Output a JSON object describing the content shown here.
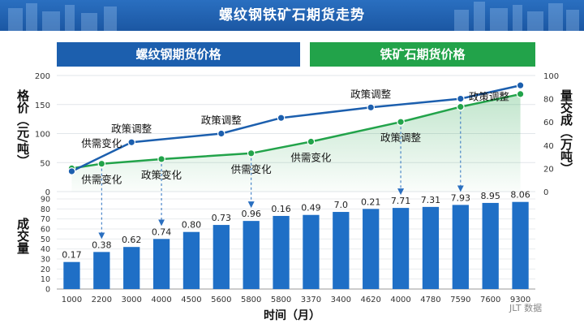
{
  "title": "螺纹钢铁矿石期货走势",
  "legend": {
    "rebar": "螺纹钢期货价格",
    "iron": "铁矿石期货价格"
  },
  "axis_labels": {
    "left_top": "格价（元/吨）",
    "right_top": "量交成（万吨）",
    "left_bottom": "成交量",
    "x": "时间（月）"
  },
  "watermark": "JLT 数据",
  "colors": {
    "rebar": "#1c5fae",
    "iron": "#22a34a",
    "bar": "#1f6fc6"
  },
  "chart_data": [
    {
      "type": "line",
      "x": [
        "1000",
        "2200",
        "3000",
        "4000",
        "4500",
        "5600",
        "5800",
        "5800",
        "3370",
        "3400",
        "4620",
        "4000",
        "4780",
        "7590",
        "7600",
        "9300"
      ],
      "series": [
        {
          "name": "螺纹钢期货价格",
          "axis": "left",
          "points": [
            [
              0,
              35
            ],
            [
              2,
              85
            ],
            [
              5,
              100
            ],
            [
              7,
              127
            ],
            [
              10,
              145
            ],
            [
              13,
              160
            ],
            [
              15,
              183
            ]
          ]
        },
        {
          "name": "铁矿石期货价格",
          "axis": "right",
          "points": [
            [
              0,
              20
            ],
            [
              1,
              24
            ],
            [
              3,
              28
            ],
            [
              6,
              33
            ],
            [
              8,
              43
            ],
            [
              11,
              60
            ],
            [
              13,
              73
            ],
            [
              15,
              84
            ]
          ]
        }
      ],
      "ylim_left": [
        0,
        200
      ],
      "yticks_left": [
        "0",
        "50",
        "100",
        "150",
        "200"
      ],
      "ylim_right": [
        0,
        100
      ],
      "yticks_right": [
        "0",
        "20",
        "40",
        "60",
        "80",
        "100"
      ],
      "annotations": [
        {
          "text": "供需变化",
          "x": 1,
          "series": 0,
          "pos": "above"
        },
        {
          "text": "供需变化",
          "x": 1,
          "series": 1,
          "pos": "below"
        },
        {
          "text": "政策调整",
          "x": 2,
          "series": 0,
          "pos": "above"
        },
        {
          "text": "政策变化",
          "x": 3,
          "series": 1,
          "pos": "below"
        },
        {
          "text": "政策调整",
          "x": 5,
          "series": 0,
          "pos": "above"
        },
        {
          "text": "供需变化",
          "x": 6,
          "series": 1,
          "pos": "below"
        },
        {
          "text": "供需变化",
          "x": 8,
          "series": 1,
          "pos": "below"
        },
        {
          "text": "政策调整",
          "x": 10,
          "series": 0,
          "pos": "above"
        },
        {
          "text": "政策调整",
          "x": 11,
          "series": 1,
          "pos": "below"
        },
        {
          "text": "政策调整",
          "x": 13,
          "series": 1,
          "pos": "right"
        }
      ]
    },
    {
      "type": "bar",
      "categories": [
        "1000",
        "2200",
        "3000",
        "4000",
        "4500",
        "5600",
        "5800",
        "5800",
        "3370",
        "3400",
        "4620",
        "4000",
        "4780",
        "7590",
        "7600",
        "9300"
      ],
      "values": [
        27,
        37,
        42,
        50,
        57,
        64,
        68,
        73,
        74,
        77,
        80,
        81,
        82,
        84,
        86,
        87
      ],
      "data_labels": [
        "0.17",
        "0.38",
        "0.62",
        "0.74",
        "0.80",
        "0.73",
        "0.96",
        "0.16",
        "0.49",
        "7.0",
        "0.21",
        "7.71",
        "7.31",
        "7.93",
        "8.95",
        "8.06"
      ],
      "ylim": [
        0,
        90
      ],
      "yticks": [
        "0",
        "10",
        "20",
        "30",
        "40",
        "50",
        "60",
        "70",
        "80",
        "90"
      ]
    }
  ]
}
